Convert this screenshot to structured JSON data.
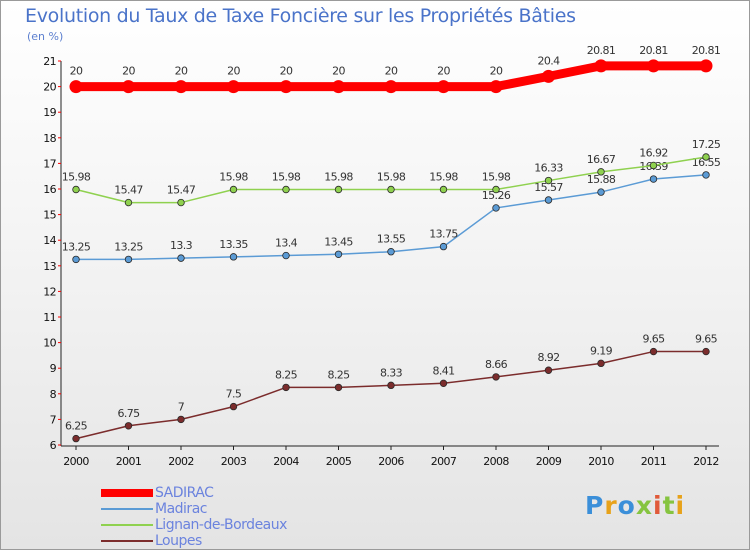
{
  "chart_data": {
    "type": "line",
    "title": "Evolution du Taux de Taxe Foncière sur les Propriétés Bâties",
    "subtitle": "(en %)",
    "x": [
      "2000",
      "2001",
      "2002",
      "2003",
      "2004",
      "2005",
      "2006",
      "2007",
      "2008",
      "2009",
      "2010",
      "2011",
      "2012"
    ],
    "ylim": [
      6,
      21
    ],
    "yticks": [
      6,
      7,
      8,
      9,
      10,
      11,
      12,
      13,
      14,
      15,
      16,
      17,
      18,
      19,
      20,
      21
    ],
    "grid": false,
    "legend_position": "bottom-left",
    "series": [
      {
        "name": "SADIRAC",
        "color": "#ff0000",
        "values": [
          20,
          20,
          20,
          20,
          20,
          20,
          20,
          20,
          20,
          20.4,
          20.81,
          20.81,
          20.81
        ],
        "labels": [
          "20",
          "20",
          "20",
          "20",
          "20",
          "20",
          "20",
          "20",
          "20",
          "20.4",
          "20.81",
          "20.81",
          "20.81"
        ]
      },
      {
        "name": "Madirac",
        "color": "#5b9bd5",
        "values": [
          13.25,
          13.25,
          13.3,
          13.35,
          13.4,
          13.45,
          13.55,
          13.75,
          15.26,
          15.57,
          15.88,
          16.39,
          16.55
        ],
        "labels": [
          "13.25",
          "13.25",
          "13.3",
          "13.35",
          "13.4",
          "13.45",
          "13.55",
          "13.75",
          "15.26",
          "15.57",
          "15.88",
          "16.39",
          "16.55"
        ]
      },
      {
        "name": "Lignan-de-Bordeaux",
        "color": "#8fd14f",
        "values": [
          15.98,
          15.47,
          15.47,
          15.98,
          15.98,
          15.98,
          15.98,
          15.98,
          15.98,
          16.33,
          16.67,
          16.92,
          17.25
        ],
        "labels": [
          "15.98",
          "15.47",
          "15.47",
          "15.98",
          "15.98",
          "15.98",
          "15.98",
          "15.98",
          "15.98",
          "16.33",
          "16.67",
          "16.92",
          "17.25"
        ]
      },
      {
        "name": "Loupes",
        "color": "#7b2c2c",
        "values": [
          6.25,
          6.75,
          7,
          7.5,
          8.25,
          8.25,
          8.33,
          8.41,
          8.66,
          8.92,
          9.19,
          9.65,
          9.65
        ],
        "labels": [
          "6.25",
          "6.75",
          "7",
          "7.5",
          "8.25",
          "8.25",
          "8.33",
          "8.41",
          "8.66",
          "8.92",
          "9.19",
          "9.65",
          "9.65"
        ]
      }
    ]
  },
  "brand": "Proxiti"
}
